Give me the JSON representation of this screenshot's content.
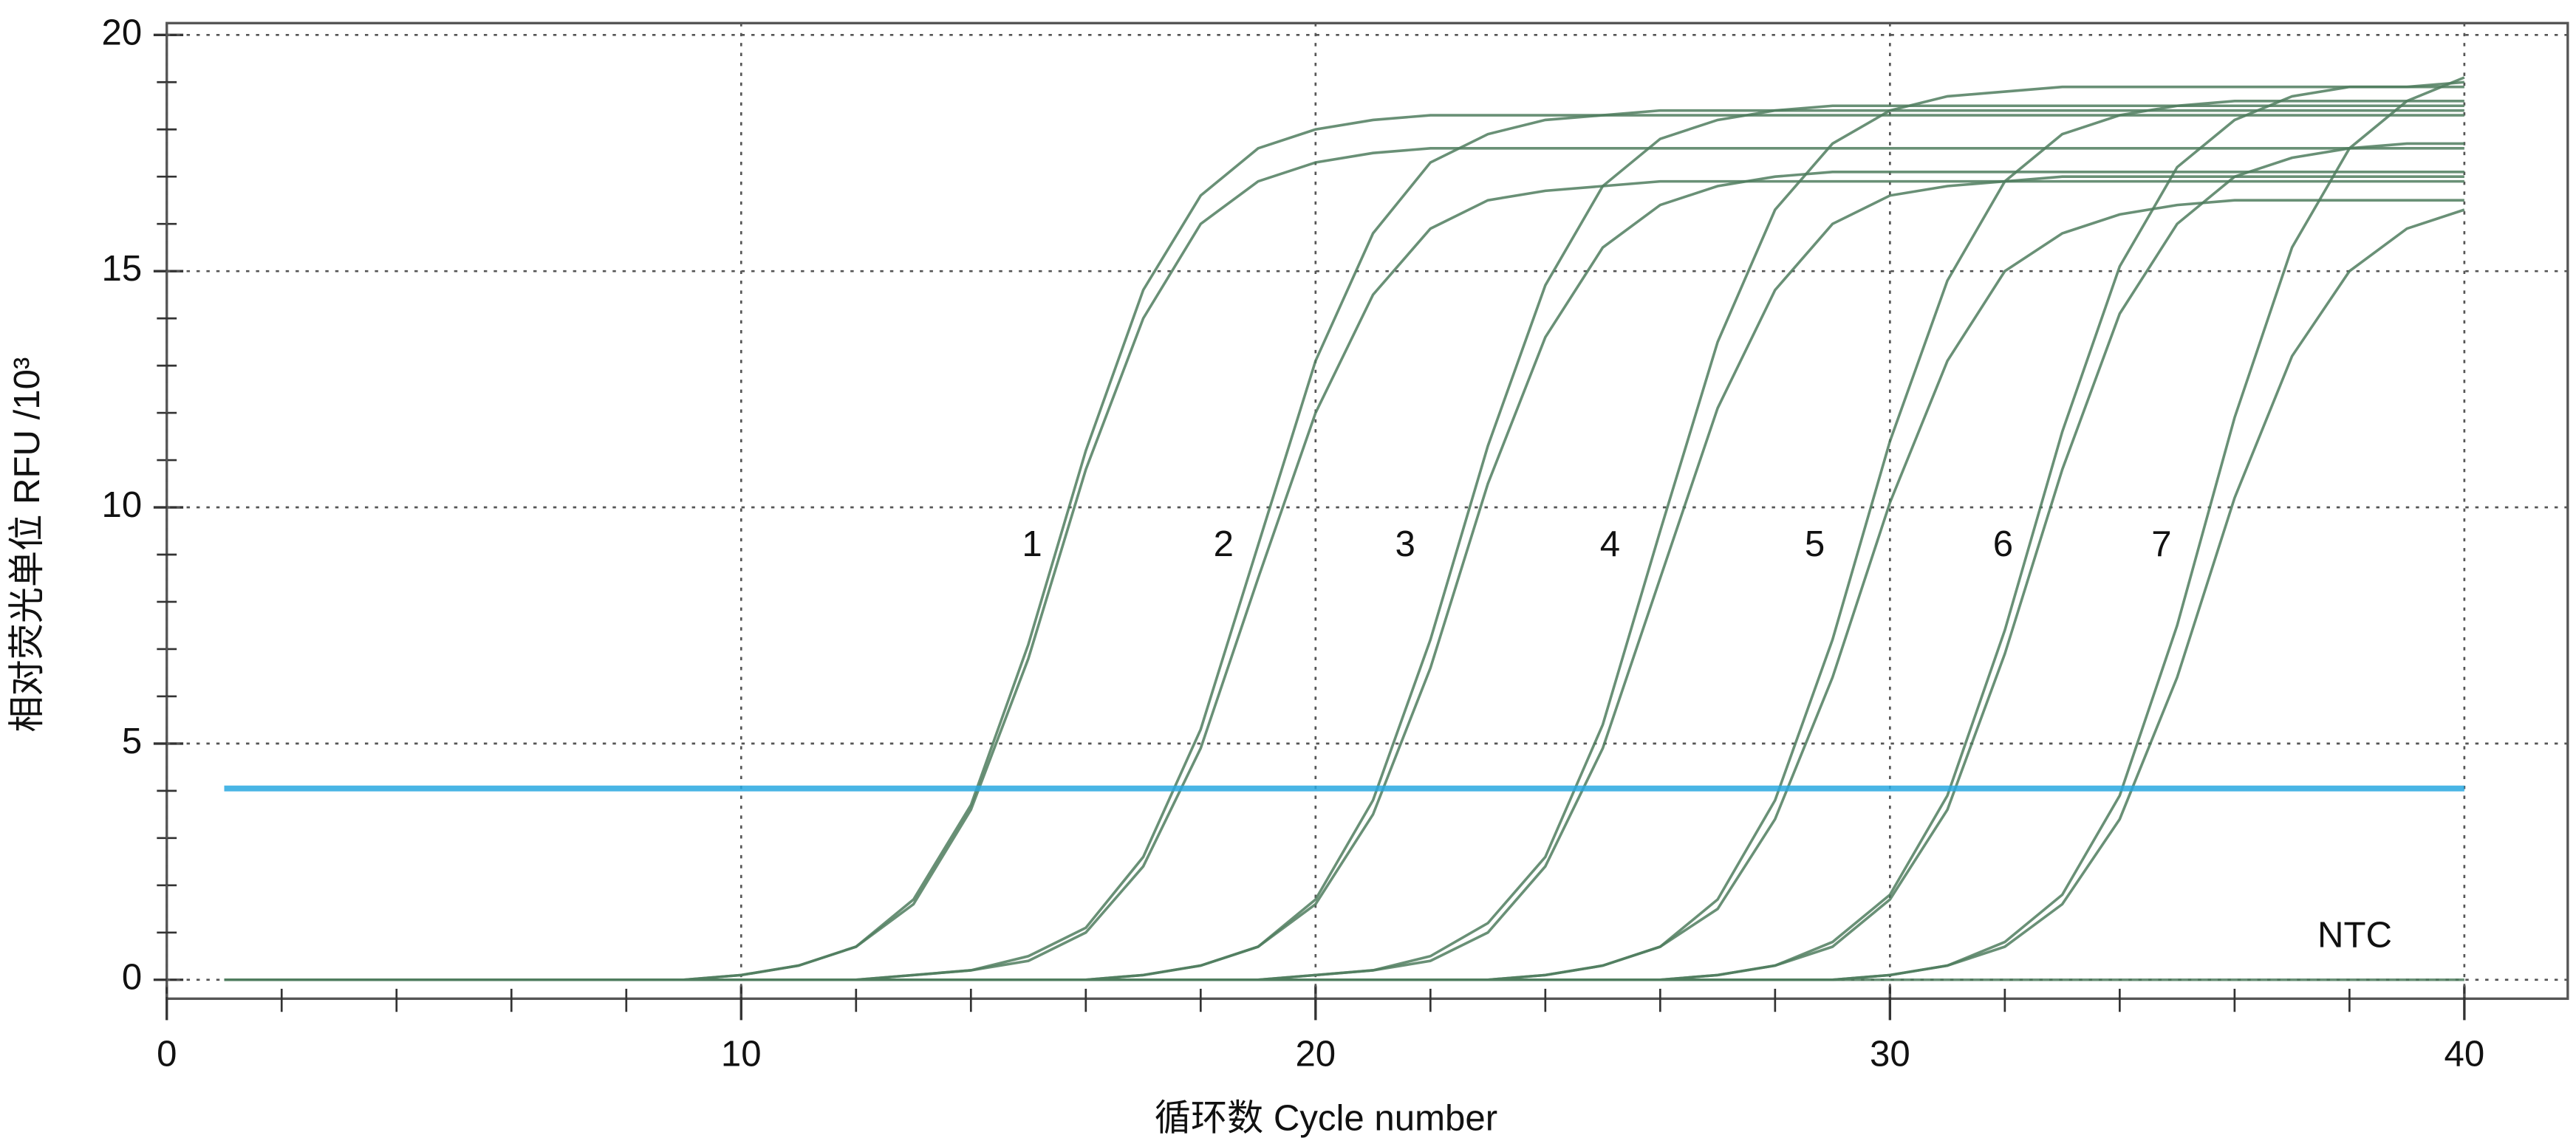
{
  "chart_data": {
    "type": "line",
    "y_label": "相对荧光单位 RFU /10³",
    "x_label": "循环数 Cycle number",
    "annotations": [
      "1",
      "2",
      "3",
      "4",
      "5",
      "6",
      "7",
      "NTC"
    ],
    "x": [
      1,
      2,
      3,
      4,
      5,
      6,
      7,
      8,
      9,
      10,
      11,
      12,
      13,
      14,
      15,
      16,
      17,
      18,
      19,
      20,
      21,
      22,
      23,
      24,
      25,
      26,
      27,
      28,
      29,
      30,
      31,
      32,
      33,
      34,
      35,
      36,
      37,
      38,
      39,
      40
    ],
    "xlim": [
      0,
      41.8
    ],
    "xticks": [
      0,
      10,
      20,
      30,
      40
    ],
    "xminorticks": [
      2,
      4,
      6,
      8,
      12,
      14,
      16,
      18,
      22,
      24,
      26,
      28,
      32,
      34,
      36,
      38
    ],
    "ylim": [
      -0.4,
      20.25
    ],
    "yticks": [
      0,
      5,
      10,
      15,
      20
    ],
    "yminorticks": [
      1,
      2,
      3,
      4,
      6,
      7,
      8,
      9,
      11,
      12,
      13,
      14,
      16,
      17,
      18,
      19
    ],
    "grid": true,
    "threshold": {
      "value": 4.05,
      "color": "#29a8e0"
    },
    "series": [
      {
        "color": "#4f7d5e",
        "values": [
          0,
          0,
          0,
          0,
          0,
          0,
          0,
          0,
          0,
          0.1,
          0.3,
          0.7,
          1.7,
          3.7,
          7.1,
          11.2,
          14.6,
          16.6,
          17.6,
          18.0,
          18.2,
          18.3,
          18.3,
          18.3,
          18.3,
          18.3,
          18.3,
          18.3,
          18.3,
          18.3,
          18.3,
          18.3,
          18.3,
          18.3,
          18.3,
          18.3,
          18.3,
          18.3,
          18.3,
          18.3
        ]
      },
      {
        "color": "#4f7d5e",
        "values": [
          0,
          0,
          0,
          0,
          0,
          0,
          0,
          0,
          0,
          0.1,
          0.3,
          0.7,
          1.6,
          3.6,
          6.8,
          10.8,
          14.0,
          16.0,
          16.9,
          17.3,
          17.5,
          17.6,
          17.6,
          17.6,
          17.6,
          17.6,
          17.6,
          17.6,
          17.6,
          17.6,
          17.6,
          17.6,
          17.6,
          17.6,
          17.6,
          17.6,
          17.6,
          17.6,
          17.6,
          17.6
        ]
      },
      {
        "color": "#4f7d5e",
        "values": [
          0,
          0,
          0,
          0,
          0,
          0,
          0,
          0,
          0,
          0,
          0,
          0,
          0.1,
          0.2,
          0.5,
          1.1,
          2.6,
          5.3,
          9.2,
          13.1,
          15.8,
          17.3,
          17.9,
          18.2,
          18.3,
          18.4,
          18.4,
          18.4,
          18.4,
          18.4,
          18.4,
          18.4,
          18.4,
          18.4,
          18.4,
          18.4,
          18.4,
          18.4,
          18.4,
          18.4
        ]
      },
      {
        "color": "#4f7d5e",
        "values": [
          0,
          0,
          0,
          0,
          0,
          0,
          0,
          0,
          0,
          0,
          0,
          0,
          0.1,
          0.2,
          0.4,
          1.0,
          2.4,
          4.9,
          8.5,
          12.0,
          14.5,
          15.9,
          16.5,
          16.7,
          16.8,
          16.9,
          16.9,
          16.9,
          16.9,
          16.9,
          16.9,
          16.9,
          16.9,
          16.9,
          16.9,
          16.9,
          16.9,
          16.9,
          16.9,
          16.9
        ]
      },
      {
        "color": "#4f7d5e",
        "values": [
          0,
          0,
          0,
          0,
          0,
          0,
          0,
          0,
          0,
          0,
          0,
          0,
          0,
          0,
          0,
          0,
          0.1,
          0.3,
          0.7,
          1.7,
          3.8,
          7.2,
          11.3,
          14.7,
          16.8,
          17.8,
          18.2,
          18.4,
          18.5,
          18.5,
          18.5,
          18.5,
          18.5,
          18.5,
          18.5,
          18.5,
          18.5,
          18.5,
          18.5,
          18.5
        ]
      },
      {
        "color": "#4f7d5e",
        "values": [
          0,
          0,
          0,
          0,
          0,
          0,
          0,
          0,
          0,
          0,
          0,
          0,
          0,
          0,
          0,
          0,
          0.1,
          0.3,
          0.7,
          1.6,
          3.5,
          6.6,
          10.5,
          13.6,
          15.5,
          16.4,
          16.8,
          17.0,
          17.1,
          17.1,
          17.1,
          17.1,
          17.1,
          17.1,
          17.1,
          17.1,
          17.1,
          17.1,
          17.1,
          17.1
        ]
      },
      {
        "color": "#4f7d5e",
        "values": [
          0,
          0,
          0,
          0,
          0,
          0,
          0,
          0,
          0,
          0,
          0,
          0,
          0,
          0,
          0,
          0,
          0,
          0,
          0,
          0.1,
          0.2,
          0.5,
          1.2,
          2.6,
          5.4,
          9.5,
          13.5,
          16.3,
          17.7,
          18.4,
          18.7,
          18.8,
          18.9,
          18.9,
          18.9,
          18.9,
          18.9,
          18.9,
          18.9,
          18.9
        ]
      },
      {
        "color": "#4f7d5e",
        "values": [
          0,
          0,
          0,
          0,
          0,
          0,
          0,
          0,
          0,
          0,
          0,
          0,
          0,
          0,
          0,
          0,
          0,
          0,
          0,
          0.1,
          0.2,
          0.4,
          1.0,
          2.4,
          4.9,
          8.5,
          12.1,
          14.6,
          16.0,
          16.6,
          16.8,
          16.9,
          17.0,
          17.0,
          17.0,
          17.0,
          17.0,
          17.0,
          17.0,
          17.0
        ]
      },
      {
        "color": "#4f7d5e",
        "values": [
          0,
          0,
          0,
          0,
          0,
          0,
          0,
          0,
          0,
          0,
          0,
          0,
          0,
          0,
          0,
          0,
          0,
          0,
          0,
          0,
          0,
          0,
          0,
          0.1,
          0.3,
          0.7,
          1.7,
          3.8,
          7.2,
          11.4,
          14.8,
          16.9,
          17.9,
          18.3,
          18.5,
          18.6,
          18.6,
          18.6,
          18.6,
          18.6
        ]
      },
      {
        "color": "#4f7d5e",
        "values": [
          0,
          0,
          0,
          0,
          0,
          0,
          0,
          0,
          0,
          0,
          0,
          0,
          0,
          0,
          0,
          0,
          0,
          0,
          0,
          0,
          0,
          0,
          0,
          0.1,
          0.3,
          0.7,
          1.5,
          3.4,
          6.4,
          10.1,
          13.1,
          15.0,
          15.8,
          16.2,
          16.4,
          16.5,
          16.5,
          16.5,
          16.5,
          16.5
        ]
      },
      {
        "color": "#4f7d5e",
        "values": [
          0,
          0,
          0,
          0,
          0,
          0,
          0,
          0,
          0,
          0,
          0,
          0,
          0,
          0,
          0,
          0,
          0,
          0,
          0,
          0,
          0,
          0,
          0,
          0,
          0,
          0,
          0.1,
          0.3,
          0.8,
          1.8,
          3.9,
          7.4,
          11.6,
          15.1,
          17.2,
          18.2,
          18.7,
          18.9,
          18.9,
          19.0
        ]
      },
      {
        "color": "#4f7d5e",
        "values": [
          0,
          0,
          0,
          0,
          0,
          0,
          0,
          0,
          0,
          0,
          0,
          0,
          0,
          0,
          0,
          0,
          0,
          0,
          0,
          0,
          0,
          0,
          0,
          0,
          0,
          0,
          0.1,
          0.3,
          0.7,
          1.7,
          3.6,
          6.9,
          10.8,
          14.1,
          16.0,
          17.0,
          17.4,
          17.6,
          17.7,
          17.7
        ]
      },
      {
        "color": "#4f7d5e",
        "values": [
          0,
          0,
          0,
          0,
          0,
          0,
          0,
          0,
          0,
          0,
          0,
          0,
          0,
          0,
          0,
          0,
          0,
          0,
          0,
          0,
          0,
          0,
          0,
          0,
          0,
          0,
          0,
          0,
          0,
          0.1,
          0.3,
          0.8,
          1.8,
          3.9,
          7.5,
          11.9,
          15.5,
          17.6,
          18.6,
          19.1
        ]
      },
      {
        "color": "#4f7d5e",
        "values": [
          0,
          0,
          0,
          0,
          0,
          0,
          0,
          0,
          0,
          0,
          0,
          0,
          0,
          0,
          0,
          0,
          0,
          0,
          0,
          0,
          0,
          0,
          0,
          0,
          0,
          0,
          0,
          0,
          0,
          0.1,
          0.3,
          0.7,
          1.6,
          3.4,
          6.4,
          10.2,
          13.2,
          15.0,
          15.9,
          16.3
        ]
      },
      {
        "color": "#4f7d5e",
        "values": [
          0,
          0,
          0,
          0,
          0,
          0,
          0,
          0,
          0,
          0,
          0,
          0,
          0,
          0,
          0,
          0,
          0,
          0,
          0,
          0,
          0,
          0,
          0,
          0,
          0,
          0,
          0,
          0,
          0,
          0,
          0,
          0,
          0,
          0,
          0,
          0,
          0,
          0,
          0,
          0
        ]
      }
    ]
  }
}
